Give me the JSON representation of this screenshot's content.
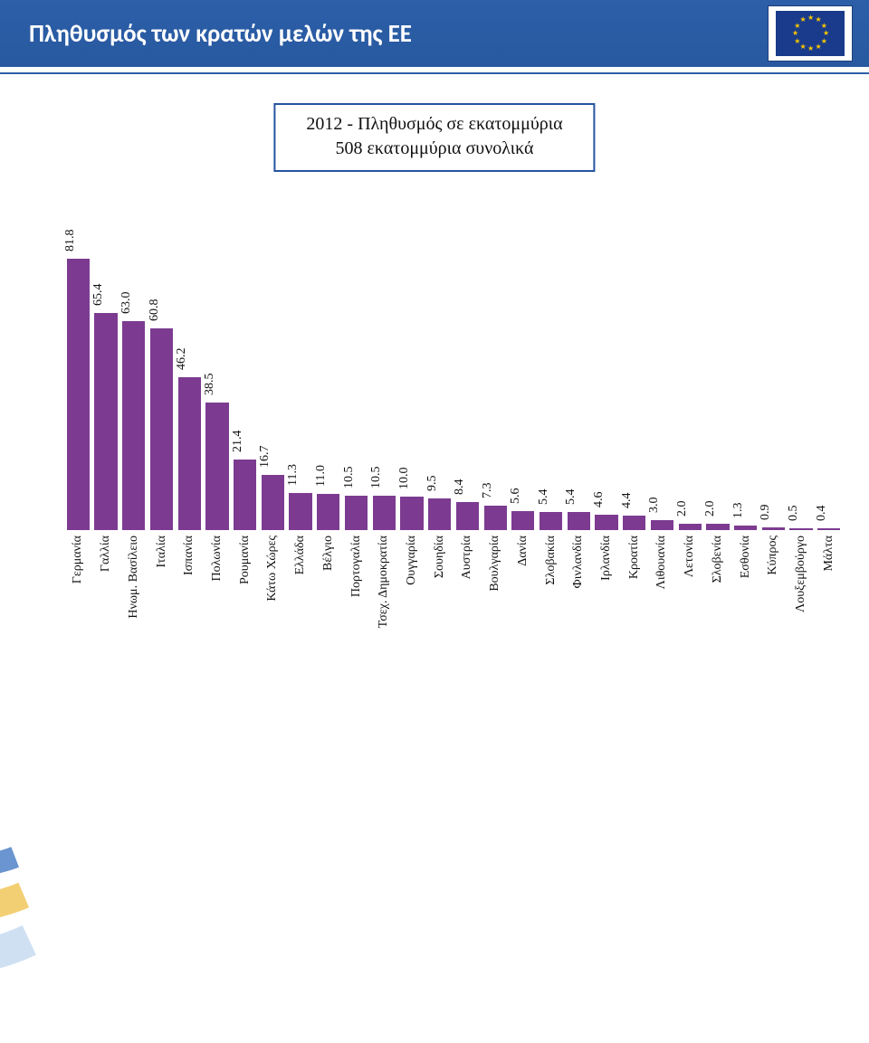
{
  "header": {
    "title": "Πληθυσμός των κρατών μελών της ΕΕ"
  },
  "legend": {
    "line1": "2012 - Πληθυσμός σε εκατομμύρια",
    "line2": "508 εκατομμύρια συνολικά",
    "border_color": "#2553a0",
    "font_family": "Times New Roman",
    "font_size": 20,
    "text_color": "#111111"
  },
  "chart": {
    "type": "bar",
    "value_unit": "εκατομμύρια",
    "max_value": 81.8,
    "bar_color": "#7c3b91",
    "value_label_fontsize": 14,
    "value_label_rotation_deg": -90,
    "category_label_fontsize": 14,
    "category_label_rotation_deg": -90,
    "background_color": "#ffffff",
    "bars": [
      {
        "label": "Γερμανία",
        "value": 81.8
      },
      {
        "label": "Γαλλία",
        "value": 65.4
      },
      {
        "label": "Ηνωμ. Βασίλειο",
        "value": 63.0
      },
      {
        "label": "Ιταλία",
        "value": 60.8
      },
      {
        "label": "Ισπανία",
        "value": 46.2
      },
      {
        "label": "Πολωνία",
        "value": 38.5
      },
      {
        "label": "Ρουμανία",
        "value": 21.4
      },
      {
        "label": "Κάτω Χώρες",
        "value": 16.7
      },
      {
        "label": "Ελλάδα",
        "value": 11.3
      },
      {
        "label": "Βέλγιο",
        "value": 11.0
      },
      {
        "label": "Πορτογαλία",
        "value": 10.5
      },
      {
        "label": "Τσεχ. Δημοκρατία",
        "value": 10.5
      },
      {
        "label": "Ουγγαρία",
        "value": 10.0
      },
      {
        "label": "Σουηδία",
        "value": 9.5
      },
      {
        "label": "Αυστρία",
        "value": 8.4
      },
      {
        "label": "Βουλγαρία",
        "value": 7.3
      },
      {
        "label": "Δανία",
        "value": 5.6
      },
      {
        "label": "Σλοβακία",
        "value": 5.4
      },
      {
        "label": "Φινλανδία",
        "value": 5.4
      },
      {
        "label": "Ιρλανδία",
        "value": 4.6
      },
      {
        "label": "Κροατία",
        "value": 4.4
      },
      {
        "label": "Λιθουανία",
        "value": 3.0
      },
      {
        "label": "Λετονία",
        "value": 2.0
      },
      {
        "label": "Σλοβενία",
        "value": 2.0
      },
      {
        "label": "Εσθονία",
        "value": 1.3
      },
      {
        "label": "Κύπρος",
        "value": 0.9
      },
      {
        "label": "Λουξεμβούργο",
        "value": 0.5
      },
      {
        "label": "Μάλτα",
        "value": 0.4
      }
    ]
  },
  "decor": {
    "ribbon_colors": [
      "#cfe0f3",
      "#f3cf74",
      "#6a95d0"
    ],
    "header_bg": "#2c5fa8",
    "flag_bg": "#1a3b8b",
    "flag_star_color": "#f7c700"
  }
}
